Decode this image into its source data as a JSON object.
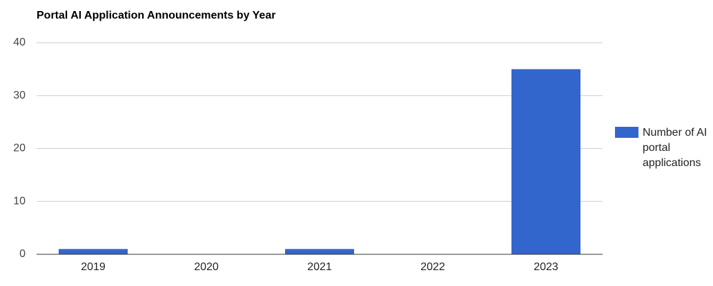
{
  "chart_data": {
    "type": "bar",
    "title": "Portal AI Application Announcements by Year",
    "categories": [
      "2019",
      "2020",
      "2021",
      "2022",
      "2023"
    ],
    "series": [
      {
        "name": "Number of AI portal applications",
        "color": "#3366cc",
        "values": [
          1,
          0,
          1,
          0,
          35
        ]
      }
    ],
    "ylim": [
      0,
      40
    ],
    "yticks": [
      0,
      10,
      20,
      30,
      40
    ],
    "grid": true,
    "legend": "right"
  }
}
